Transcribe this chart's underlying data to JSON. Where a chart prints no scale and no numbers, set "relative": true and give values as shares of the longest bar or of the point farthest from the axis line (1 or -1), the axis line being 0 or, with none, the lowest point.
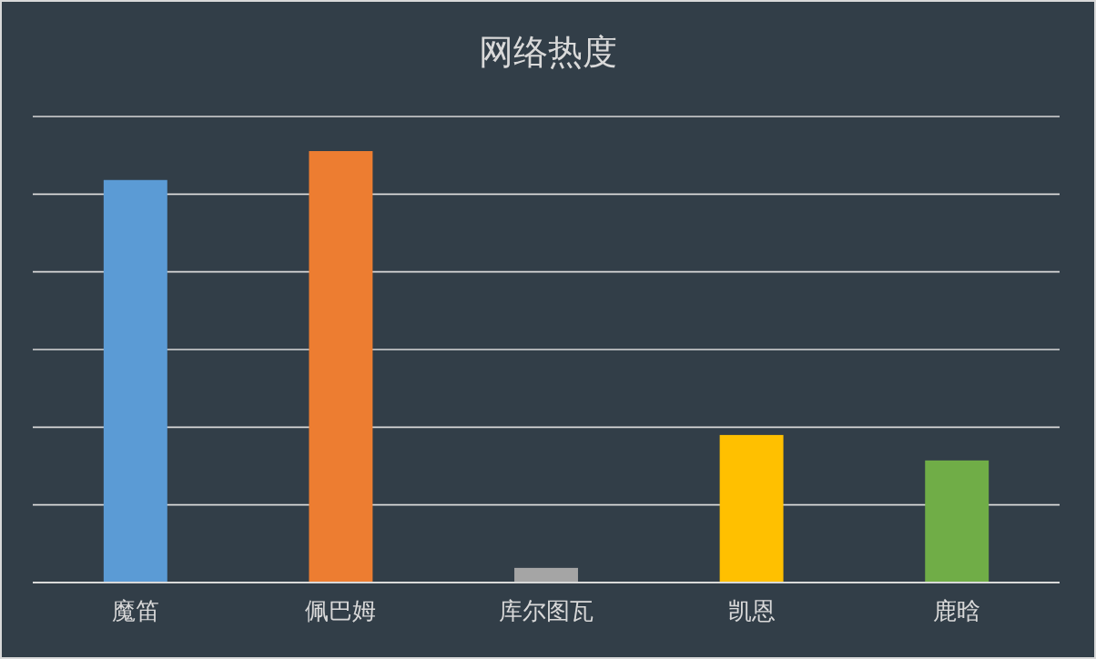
{
  "chart_data": {
    "type": "bar",
    "title": "网络热度",
    "categories": [
      "魔笛",
      "佩巴姆",
      "库尔图瓦",
      "凯恩",
      "鹿晗"
    ],
    "values": [
      0.933,
      1,
      0.034,
      0.342,
      0.283
    ],
    "colors": [
      "#5b9bd5",
      "#ed7d31",
      "#a5a5a5",
      "#ffc000",
      "#70ad47"
    ],
    "relative": true,
    "grid": true
  }
}
